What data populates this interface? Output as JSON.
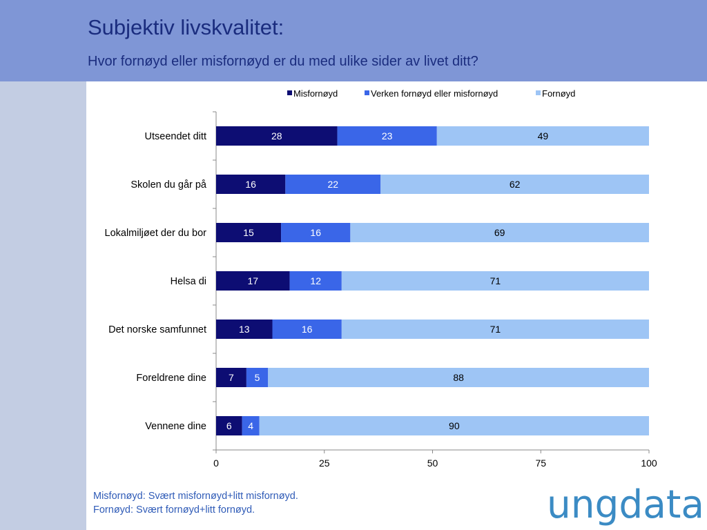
{
  "header": {
    "title": "Subjektiv livskvalitet:",
    "subtitle": "Hvor fornøyd eller misfornøyd er du med ulike sider av livet ditt?"
  },
  "footnote": {
    "line1": "Misfornøyd: Svært misfornøyd+litt misfornøyd.",
    "line2": "Fornøyd: Svært fornøyd+litt fornøyd."
  },
  "logo": {
    "text": "ungdata",
    "color": "#3b8bc4"
  },
  "chart_data": {
    "type": "bar",
    "orientation": "horizontal",
    "stacked": true,
    "categories": [
      "Utseendet ditt",
      "Skolen du går på",
      "Lokalmiljøet der du bor",
      "Helsa di",
      "Det norske samfunnet",
      "Foreldrene dine",
      "Vennene dine"
    ],
    "series": [
      {
        "name": "Misfornøyd",
        "color": "#0d0d73",
        "label_color": "#ffffff",
        "values": [
          28,
          16,
          15,
          17,
          13,
          7,
          6
        ]
      },
      {
        "name": "Verken fornøyd eller misfornøyd",
        "color": "#3a66e8",
        "label_color": "#ffffff",
        "values": [
          23,
          22,
          16,
          12,
          16,
          5,
          4
        ]
      },
      {
        "name": "Fornøyd",
        "color": "#9ec5f5",
        "label_color": "#000000",
        "values": [
          49,
          62,
          69,
          71,
          71,
          88,
          90
        ]
      }
    ],
    "xlim": [
      0,
      100
    ],
    "xticks": [
      0,
      25,
      50,
      75,
      100
    ],
    "grid": false,
    "legend_position": "top"
  }
}
